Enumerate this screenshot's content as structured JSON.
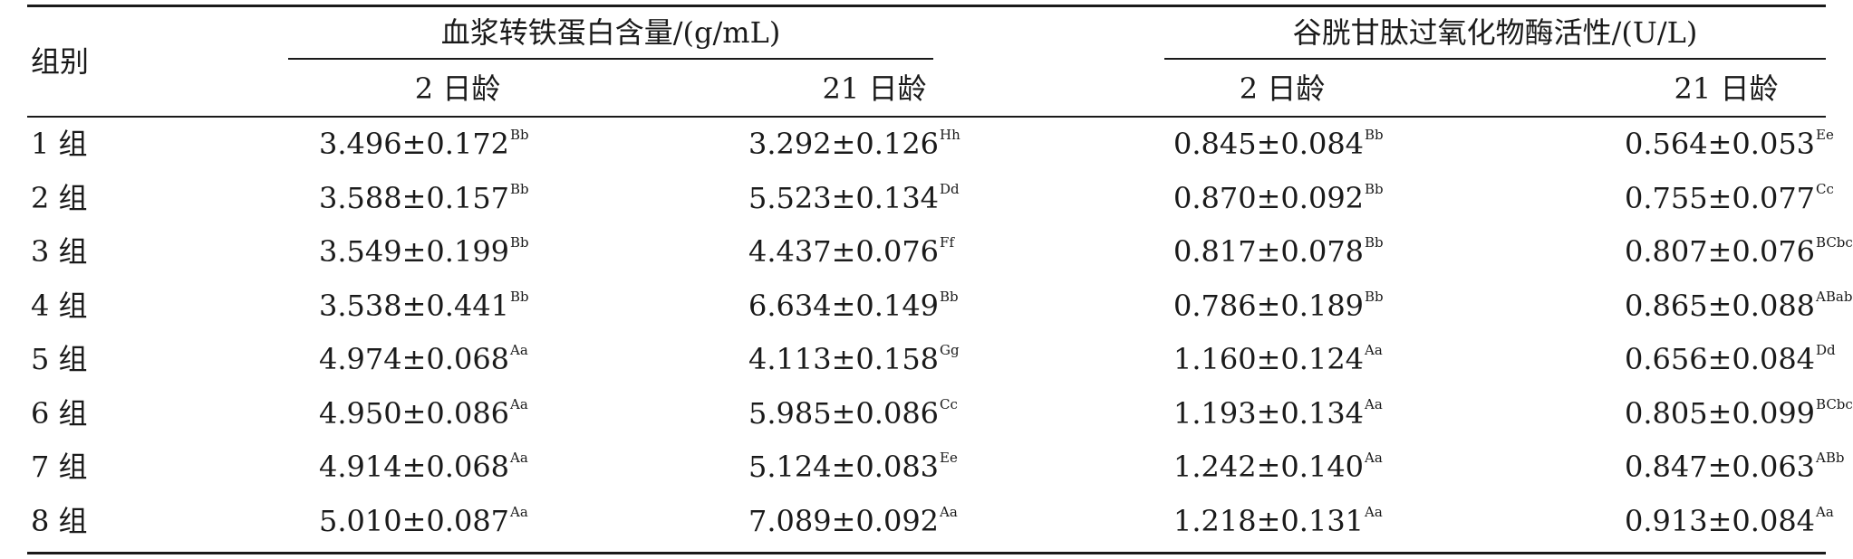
{
  "table": {
    "group_header": "组别",
    "header_plasma": "血浆转铁蛋白含量/(g/mL)",
    "header_gsh": "谷胱甘肽过氧化物酶活性/(U/L)",
    "sub_headers": [
      "2 日龄",
      "21 日龄",
      "2 日龄",
      "21 日龄"
    ],
    "rows": [
      {
        "label": "1 组",
        "v": [
          {
            "n": "3.496±0.172",
            "s": "Bb"
          },
          {
            "n": "3.292±0.126",
            "s": "Hh"
          },
          {
            "n": "0.845±0.084",
            "s": "Bb"
          },
          {
            "n": "0.564±0.053",
            "s": "Ee"
          }
        ]
      },
      {
        "label": "2 组",
        "v": [
          {
            "n": "3.588±0.157",
            "s": "Bb"
          },
          {
            "n": "5.523±0.134",
            "s": "Dd"
          },
          {
            "n": "0.870±0.092",
            "s": "Bb"
          },
          {
            "n": "0.755±0.077",
            "s": "Cc"
          }
        ]
      },
      {
        "label": "3 组",
        "v": [
          {
            "n": "3.549±0.199",
            "s": "Bb"
          },
          {
            "n": "4.437±0.076",
            "s": "Ff"
          },
          {
            "n": "0.817±0.078",
            "s": "Bb"
          },
          {
            "n": "0.807±0.076",
            "s": "BCbc"
          }
        ]
      },
      {
        "label": "4 组",
        "v": [
          {
            "n": "3.538±0.441",
            "s": "Bb"
          },
          {
            "n": "6.634±0.149",
            "s": "Bb"
          },
          {
            "n": "0.786±0.189",
            "s": "Bb"
          },
          {
            "n": "0.865±0.088",
            "s": "ABab"
          }
        ]
      },
      {
        "label": "5 组",
        "v": [
          {
            "n": "4.974±0.068",
            "s": "Aa"
          },
          {
            "n": "4.113±0.158",
            "s": "Gg"
          },
          {
            "n": "1.160±0.124",
            "s": "Aa"
          },
          {
            "n": "0.656±0.084",
            "s": "Dd"
          }
        ]
      },
      {
        "label": "6 组",
        "v": [
          {
            "n": "4.950±0.086",
            "s": "Aa"
          },
          {
            "n": "5.985±0.086",
            "s": "Cc"
          },
          {
            "n": "1.193±0.134",
            "s": "Aa"
          },
          {
            "n": "0.805±0.099",
            "s": "BCbc"
          }
        ]
      },
      {
        "label": "7 组",
        "v": [
          {
            "n": "4.914±0.068",
            "s": "Aa"
          },
          {
            "n": "5.124±0.083",
            "s": "Ee"
          },
          {
            "n": "1.242±0.140",
            "s": "Aa"
          },
          {
            "n": "0.847±0.063",
            "s": "ABb"
          }
        ]
      },
      {
        "label": "8 组",
        "v": [
          {
            "n": "5.010±0.087",
            "s": "Aa"
          },
          {
            "n": "7.089±0.092",
            "s": "Aa"
          },
          {
            "n": "1.218±0.131",
            "s": "Aa"
          },
          {
            "n": "0.913±0.084",
            "s": "Aa"
          }
        ]
      }
    ]
  }
}
